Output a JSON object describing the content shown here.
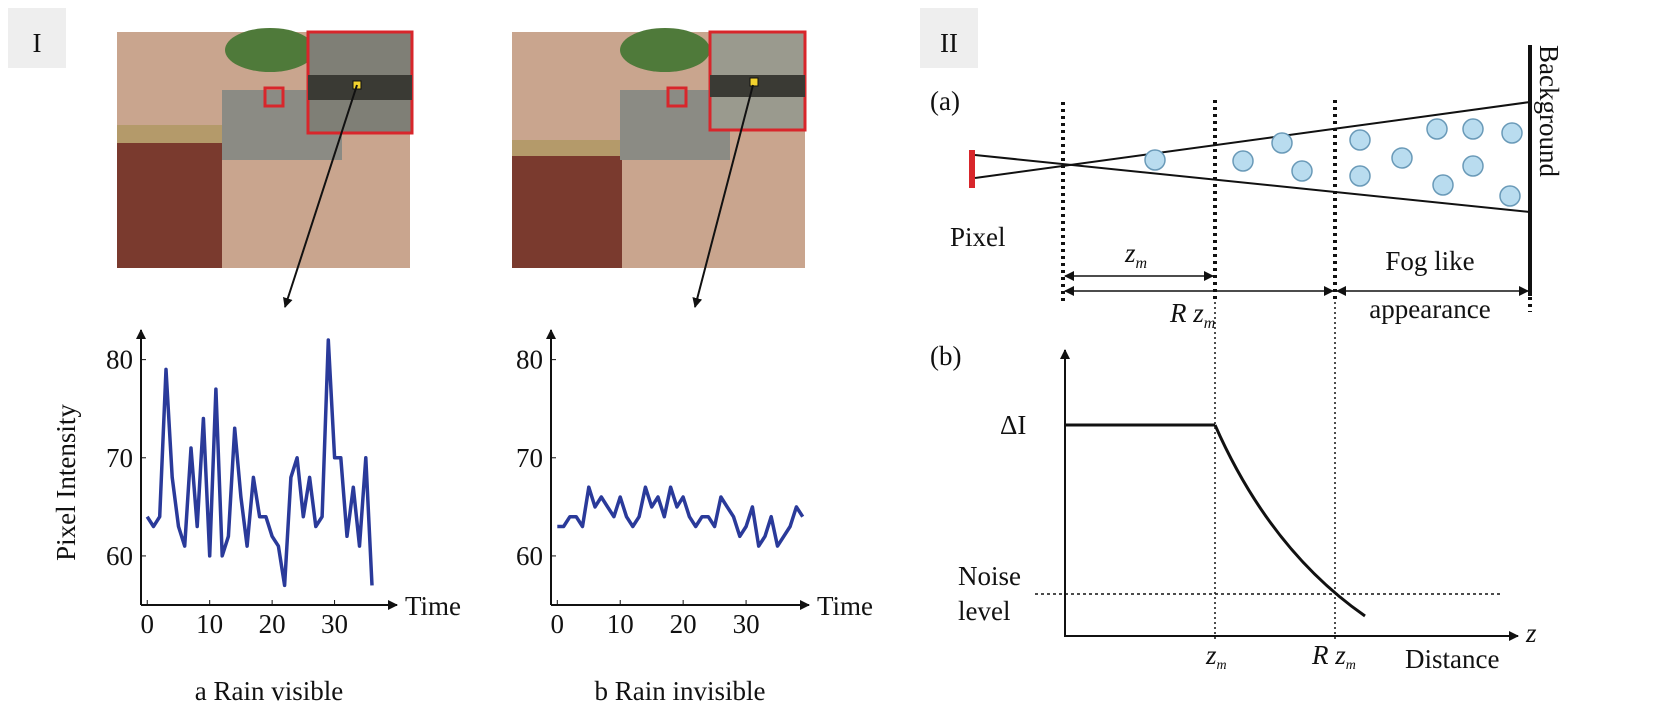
{
  "chart_data": [
    {
      "type": "line",
      "title": "a  Rain visible",
      "y_label": "Pixel Intensity",
      "x_label": "Time",
      "x": [
        0,
        1,
        2,
        3,
        4,
        5,
        6,
        7,
        8,
        9,
        10,
        11,
        12,
        13,
        14,
        15,
        16,
        17,
        18,
        19,
        20,
        21,
        22,
        23,
        24,
        25,
        26,
        27,
        28,
        29,
        30,
        31,
        32,
        33,
        34,
        35,
        36
      ],
      "values": [
        64,
        63,
        64,
        79,
        68,
        63,
        61,
        71,
        63,
        74,
        60,
        77,
        60,
        62,
        73,
        66,
        61,
        68,
        64,
        64,
        62,
        61,
        57,
        68,
        70,
        64,
        68,
        63,
        64,
        82,
        70,
        70,
        62,
        67,
        61,
        70,
        57
      ],
      "color": "#2a3a9a",
      "xlim": [
        -1,
        40
      ],
      "ylim": [
        55,
        82
      ],
      "xticks": [
        0,
        10,
        20,
        30
      ],
      "yticks": [
        60,
        70,
        80
      ]
    },
    {
      "type": "line",
      "title": "b  Rain invisible",
      "x_label": "Time",
      "x": [
        0,
        1,
        2,
        3,
        4,
        5,
        6,
        7,
        8,
        9,
        10,
        11,
        12,
        13,
        14,
        15,
        16,
        17,
        18,
        19,
        20,
        21,
        22,
        23,
        24,
        25,
        26,
        27,
        28,
        29,
        30,
        31,
        32,
        33,
        34,
        35,
        36,
        37,
        38,
        39
      ],
      "values": [
        63,
        63,
        64,
        64,
        63,
        67,
        65,
        66,
        65,
        64,
        66,
        64,
        63,
        64,
        67,
        65,
        66,
        64,
        67,
        65,
        66,
        64,
        63,
        64,
        64,
        63,
        66,
        65,
        64,
        62,
        63,
        65,
        61,
        62,
        64,
        61,
        62,
        63,
        65,
        64
      ],
      "color": "#2a3a9a",
      "xlim": [
        -1,
        40
      ],
      "ylim": [
        55,
        82
      ],
      "xticks": [
        0,
        10,
        20,
        30
      ],
      "yticks": [
        60,
        70,
        80
      ]
    }
  ],
  "panel_labels": [
    "I",
    "II"
  ],
  "diagram_a": {
    "label": "(a)",
    "background": "Background",
    "pixel": "Pixel",
    "zm": {
      "base": "z",
      "sub": "m"
    },
    "rzm": {
      "base": "R z",
      "sub": "m"
    },
    "fog": [
      "Fog like",
      "appearance"
    ]
  },
  "diagram_b": {
    "label": "(b)",
    "delta": "ΔI",
    "noise": [
      "Noise",
      "level"
    ],
    "axis": "z",
    "x_label": "Distance",
    "zm": {
      "base": "z",
      "sub": "m"
    },
    "rzm": {
      "base": "R z",
      "sub": "m"
    }
  }
}
